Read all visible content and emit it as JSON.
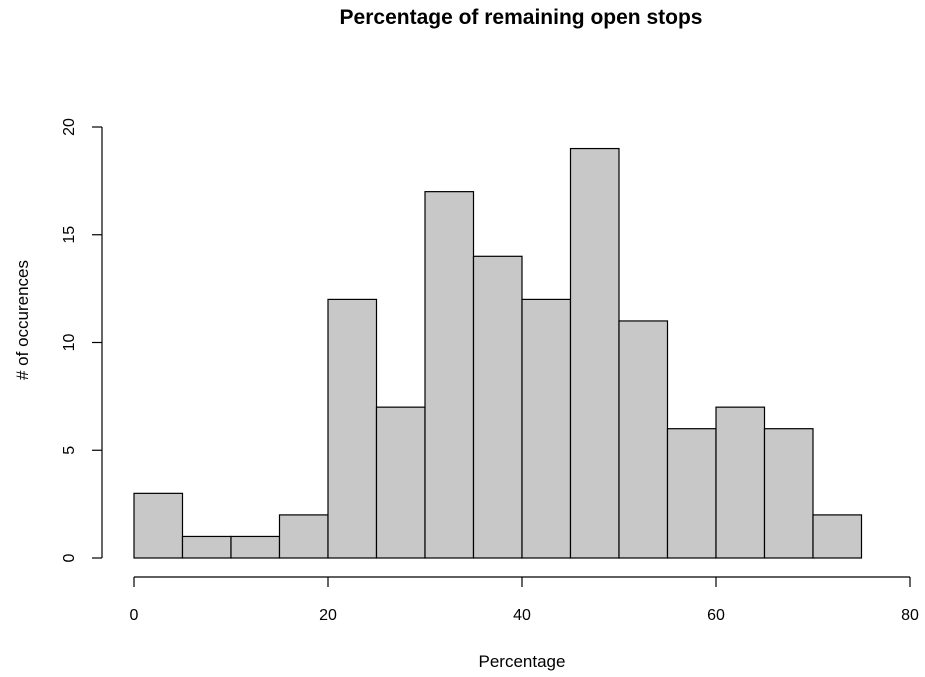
{
  "chart_data": {
    "type": "bar",
    "title": "Percentage of remaining open stops",
    "xlabel": "Percentage",
    "ylabel": "# of occurences",
    "bins": [
      {
        "from": 0,
        "to": 5,
        "count": 3
      },
      {
        "from": 5,
        "to": 10,
        "count": 1
      },
      {
        "from": 10,
        "to": 15,
        "count": 1
      },
      {
        "from": 15,
        "to": 20,
        "count": 2
      },
      {
        "from": 20,
        "to": 25,
        "count": 12
      },
      {
        "from": 25,
        "to": 30,
        "count": 7
      },
      {
        "from": 30,
        "to": 35,
        "count": 17
      },
      {
        "from": 35,
        "to": 40,
        "count": 14
      },
      {
        "from": 40,
        "to": 45,
        "count": 12
      },
      {
        "from": 45,
        "to": 50,
        "count": 19
      },
      {
        "from": 50,
        "to": 55,
        "count": 11
      },
      {
        "from": 55,
        "to": 60,
        "count": 6
      },
      {
        "from": 60,
        "to": 65,
        "count": 7
      },
      {
        "from": 65,
        "to": 70,
        "count": 6
      },
      {
        "from": 70,
        "to": 75,
        "count": 2
      }
    ],
    "xlim": [
      0,
      80
    ],
    "ylim": [
      0,
      20
    ],
    "xticks": [
      "0",
      "20",
      "40",
      "60",
      "80"
    ],
    "yticks": [
      "0",
      "5",
      "10",
      "15",
      "20"
    ],
    "grid": false,
    "legend": "none",
    "colors": {
      "bar_fill": "#c8c8c8",
      "bar_stroke": "#000000"
    }
  }
}
